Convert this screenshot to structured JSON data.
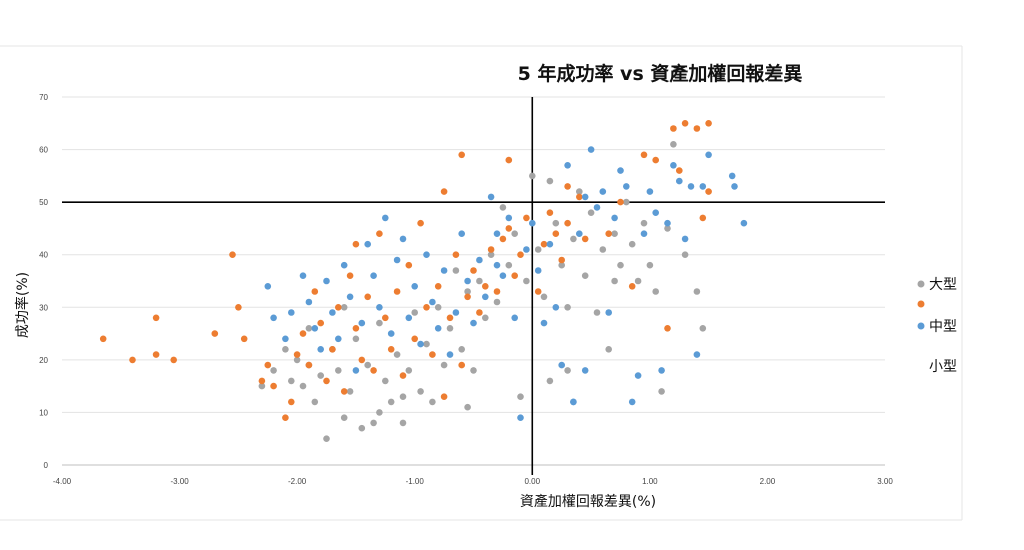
{
  "chart_data": {
    "type": "scatter",
    "title": "5 年成功率 vs 資產加權回報差異",
    "xlabel": "資產加權回報差異(%)",
    "ylabel": "成功率(%)",
    "xlim": [
      -4,
      3
    ],
    "ylim": [
      0,
      70
    ],
    "x_ticks": [
      "-4.00",
      "-3.00",
      "-2.00",
      "-1.00",
      "0.00",
      "1.00",
      "2.00",
      "3.00"
    ],
    "y_ticks": [
      "0",
      "10",
      "20",
      "30",
      "40",
      "50",
      "60",
      "70"
    ],
    "grid": "horizontal",
    "reference_lines": {
      "x": 0,
      "y": 50
    },
    "legend_position": "right",
    "series": [
      {
        "name": "大型",
        "color": "#a5a5a5",
        "points": [
          [
            -2.2,
            18
          ],
          [
            -2.1,
            22
          ],
          [
            -2.05,
            16
          ],
          [
            -2.0,
            20
          ],
          [
            -1.95,
            15
          ],
          [
            -1.9,
            19
          ],
          [
            -1.85,
            12
          ],
          [
            -1.8,
            17
          ],
          [
            -1.75,
            5
          ],
          [
            -1.7,
            22
          ],
          [
            -1.65,
            18
          ],
          [
            -1.6,
            9
          ],
          [
            -1.55,
            14
          ],
          [
            -1.5,
            24
          ],
          [
            -1.45,
            7
          ],
          [
            -1.4,
            19
          ],
          [
            -1.35,
            8
          ],
          [
            -1.3,
            27
          ],
          [
            -1.25,
            16
          ],
          [
            -1.2,
            12
          ],
          [
            -1.15,
            21
          ],
          [
            -1.1,
            8
          ],
          [
            -1.05,
            18
          ],
          [
            -1.0,
            29
          ],
          [
            -0.95,
            14
          ],
          [
            -0.9,
            23
          ],
          [
            -0.85,
            12
          ],
          [
            -0.8,
            30
          ],
          [
            -0.75,
            19
          ],
          [
            -0.7,
            26
          ],
          [
            -0.65,
            37
          ],
          [
            -0.6,
            22
          ],
          [
            -0.55,
            33
          ],
          [
            -0.5,
            18
          ],
          [
            -0.45,
            35
          ],
          [
            -0.4,
            28
          ],
          [
            -0.35,
            40
          ],
          [
            -0.3,
            31
          ],
          [
            -0.25,
            49
          ],
          [
            -0.2,
            38
          ],
          [
            -0.15,
            44
          ],
          [
            -0.1,
            13
          ],
          [
            -0.05,
            35
          ],
          [
            0.0,
            55
          ],
          [
            0.05,
            41
          ],
          [
            0.1,
            32
          ],
          [
            0.15,
            54
          ],
          [
            0.2,
            46
          ],
          [
            0.25,
            38
          ],
          [
            0.3,
            30
          ],
          [
            0.35,
            43
          ],
          [
            0.4,
            52
          ],
          [
            0.45,
            36
          ],
          [
            0.5,
            48
          ],
          [
            0.55,
            29
          ],
          [
            0.6,
            41
          ],
          [
            0.65,
            22
          ],
          [
            0.7,
            44
          ],
          [
            0.75,
            38
          ],
          [
            0.8,
            50
          ],
          [
            0.85,
            42
          ],
          [
            0.9,
            35
          ],
          [
            0.95,
            46
          ],
          [
            1.0,
            38
          ],
          [
            1.05,
            33
          ],
          [
            1.1,
            14
          ],
          [
            1.15,
            45
          ],
          [
            1.2,
            61
          ],
          [
            1.3,
            40
          ],
          [
            1.4,
            33
          ],
          [
            1.45,
            26
          ],
          [
            -1.6,
            30
          ],
          [
            -1.1,
            13
          ],
          [
            -0.55,
            11
          ],
          [
            0.15,
            16
          ],
          [
            0.3,
            18
          ],
          [
            0.7,
            35
          ],
          [
            -2.3,
            15
          ],
          [
            -1.9,
            26
          ],
          [
            -1.3,
            10
          ]
        ]
      },
      {
        "name": "中型",
        "color": "#ed7d31",
        "points": [
          [
            -3.65,
            24
          ],
          [
            -3.4,
            20
          ],
          [
            -3.2,
            28
          ],
          [
            -3.2,
            21
          ],
          [
            -3.05,
            20
          ],
          [
            -2.7,
            25
          ],
          [
            -2.55,
            40
          ],
          [
            -2.5,
            30
          ],
          [
            -2.45,
            24
          ],
          [
            -2.3,
            16
          ],
          [
            -2.25,
            19
          ],
          [
            -2.2,
            15
          ],
          [
            -2.1,
            9
          ],
          [
            -2.05,
            12
          ],
          [
            -2.0,
            21
          ],
          [
            -1.95,
            25
          ],
          [
            -1.9,
            19
          ],
          [
            -1.85,
            33
          ],
          [
            -1.8,
            27
          ],
          [
            -1.75,
            16
          ],
          [
            -1.7,
            22
          ],
          [
            -1.65,
            30
          ],
          [
            -1.6,
            14
          ],
          [
            -1.55,
            36
          ],
          [
            -1.5,
            26
          ],
          [
            -1.45,
            20
          ],
          [
            -1.4,
            32
          ],
          [
            -1.35,
            18
          ],
          [
            -1.3,
            44
          ],
          [
            -1.25,
            28
          ],
          [
            -1.2,
            22
          ],
          [
            -1.15,
            33
          ],
          [
            -1.1,
            17
          ],
          [
            -1.05,
            38
          ],
          [
            -1.0,
            24
          ],
          [
            -0.95,
            46
          ],
          [
            -0.9,
            30
          ],
          [
            -0.85,
            21
          ],
          [
            -0.8,
            34
          ],
          [
            -0.75,
            13
          ],
          [
            -0.7,
            28
          ],
          [
            -0.65,
            40
          ],
          [
            -0.6,
            19
          ],
          [
            -0.55,
            32
          ],
          [
            -0.5,
            37
          ],
          [
            -0.45,
            29
          ],
          [
            -0.4,
            34
          ],
          [
            -0.35,
            41
          ],
          [
            -0.3,
            33
          ],
          [
            -0.25,
            43
          ],
          [
            -0.2,
            45
          ],
          [
            -0.15,
            36
          ],
          [
            -0.1,
            40
          ],
          [
            -0.05,
            47
          ],
          [
            0.05,
            33
          ],
          [
            0.1,
            42
          ],
          [
            0.15,
            48
          ],
          [
            0.2,
            44
          ],
          [
            0.25,
            39
          ],
          [
            0.3,
            46
          ],
          [
            0.4,
            51
          ],
          [
            0.45,
            43
          ],
          [
            0.65,
            44
          ],
          [
            0.75,
            50
          ],
          [
            0.85,
            34
          ],
          [
            0.95,
            59
          ],
          [
            1.05,
            58
          ],
          [
            1.15,
            26
          ],
          [
            1.2,
            64
          ],
          [
            1.25,
            56
          ],
          [
            1.3,
            65
          ],
          [
            1.4,
            64
          ],
          [
            1.45,
            47
          ],
          [
            1.5,
            65
          ],
          [
            1.5,
            52
          ],
          [
            -0.6,
            59
          ],
          [
            -0.2,
            58
          ],
          [
            -0.75,
            52
          ],
          [
            0.3,
            53
          ],
          [
            -1.5,
            42
          ]
        ]
      },
      {
        "name": "小型",
        "color": "#5b9bd5",
        "points": [
          [
            -2.25,
            34
          ],
          [
            -2.2,
            28
          ],
          [
            -2.1,
            24
          ],
          [
            -2.05,
            29
          ],
          [
            -1.95,
            36
          ],
          [
            -1.9,
            31
          ],
          [
            -1.85,
            26
          ],
          [
            -1.8,
            22
          ],
          [
            -1.75,
            35
          ],
          [
            -1.7,
            29
          ],
          [
            -1.65,
            24
          ],
          [
            -1.6,
            38
          ],
          [
            -1.55,
            32
          ],
          [
            -1.5,
            18
          ],
          [
            -1.45,
            27
          ],
          [
            -1.4,
            42
          ],
          [
            -1.35,
            36
          ],
          [
            -1.3,
            30
          ],
          [
            -1.25,
            47
          ],
          [
            -1.2,
            25
          ],
          [
            -1.15,
            39
          ],
          [
            -1.1,
            43
          ],
          [
            -1.05,
            28
          ],
          [
            -1.0,
            34
          ],
          [
            -0.95,
            23
          ],
          [
            -0.9,
            40
          ],
          [
            -0.85,
            31
          ],
          [
            -0.8,
            26
          ],
          [
            -0.75,
            37
          ],
          [
            -0.7,
            21
          ],
          [
            -0.65,
            29
          ],
          [
            -0.6,
            44
          ],
          [
            -0.55,
            35
          ],
          [
            -0.5,
            27
          ],
          [
            -0.45,
            39
          ],
          [
            -0.4,
            32
          ],
          [
            -0.35,
            51
          ],
          [
            -0.3,
            44
          ],
          [
            -0.25,
            36
          ],
          [
            -0.2,
            47
          ],
          [
            -0.15,
            28
          ],
          [
            -0.1,
            9
          ],
          [
            -0.05,
            41
          ],
          [
            0.0,
            46
          ],
          [
            0.05,
            37
          ],
          [
            0.1,
            27
          ],
          [
            0.15,
            42
          ],
          [
            0.2,
            30
          ],
          [
            0.25,
            19
          ],
          [
            0.3,
            57
          ],
          [
            0.35,
            12
          ],
          [
            0.4,
            44
          ],
          [
            0.45,
            51
          ],
          [
            0.5,
            60
          ],
          [
            0.55,
            49
          ],
          [
            0.6,
            52
          ],
          [
            0.65,
            29
          ],
          [
            0.7,
            47
          ],
          [
            0.75,
            56
          ],
          [
            0.8,
            53
          ],
          [
            0.85,
            12
          ],
          [
            0.9,
            17
          ],
          [
            0.95,
            44
          ],
          [
            1.0,
            52
          ],
          [
            1.05,
            48
          ],
          [
            1.1,
            18
          ],
          [
            1.15,
            46
          ],
          [
            1.2,
            57
          ],
          [
            1.25,
            54
          ],
          [
            1.3,
            43
          ],
          [
            1.35,
            53
          ],
          [
            1.4,
            21
          ],
          [
            1.45,
            53
          ],
          [
            1.5,
            59
          ],
          [
            1.7,
            55
          ],
          [
            1.72,
            53
          ],
          [
            1.8,
            46
          ],
          [
            0.45,
            18
          ],
          [
            0.35,
            12
          ],
          [
            -0.3,
            38
          ]
        ]
      }
    ]
  }
}
